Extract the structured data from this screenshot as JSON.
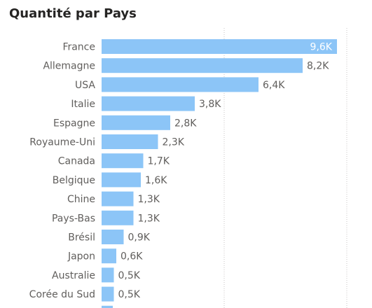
{
  "chart_data": {
    "type": "bar",
    "orientation": "horizontal",
    "title": "Quantité par Pays",
    "categories": [
      "France",
      "Allemagne",
      "USA",
      "Italie",
      "Espagne",
      "Royaume-Uni",
      "Canada",
      "Belgique",
      "Chine",
      "Pays-Bas",
      "Brésil",
      "Japon",
      "Australie",
      "Corée du Sud"
    ],
    "values": [
      9600,
      8200,
      6400,
      3800,
      2800,
      2300,
      1700,
      1600,
      1300,
      1300,
      900,
      600,
      500,
      500
    ],
    "value_labels": [
      "9,6K",
      "8,2K",
      "6,4K",
      "3,8K",
      "2,8K",
      "2,3K",
      "1,7K",
      "1,6K",
      "1,3K",
      "1,3K",
      "0,9K",
      "0,6K",
      "0,5K",
      "0,5K"
    ],
    "xlim": [
      0,
      10000
    ],
    "grid": true,
    "bar_color": "#8cc5f7"
  }
}
